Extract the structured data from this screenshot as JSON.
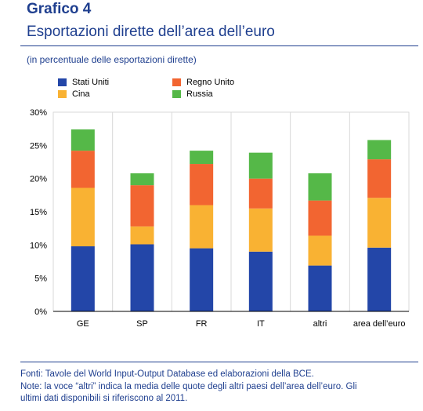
{
  "figure": {
    "label": "Grafico 4",
    "title": "Esportazioni dirette dell’area dell’euro",
    "subtitle": "(in percentuale delle esportazioni dirette)"
  },
  "colors": {
    "Stati Uniti": "#2346a8",
    "Cina": "#f9b233",
    "Regno Unito": "#f26531",
    "Russia": "#55b848",
    "text": "#1f3f8f"
  },
  "chart_data": {
    "type": "bar",
    "stacked": true,
    "categories": [
      "GE",
      "SP",
      "FR",
      "IT",
      "altri",
      "area dell’euro"
    ],
    "series": [
      {
        "name": "Stati Uniti",
        "values": [
          9.8,
          10.1,
          9.5,
          9.0,
          6.9,
          9.6
        ]
      },
      {
        "name": "Cina",
        "values": [
          8.8,
          2.7,
          6.5,
          6.5,
          4.5,
          7.5
        ]
      },
      {
        "name": "Regno Unito",
        "values": [
          5.6,
          6.2,
          6.2,
          4.5,
          5.3,
          5.8
        ]
      },
      {
        "name": "Russia",
        "values": [
          3.2,
          1.8,
          2.0,
          3.9,
          4.1,
          2.9
        ]
      }
    ],
    "legend_order": [
      "Stati Uniti",
      "Regno Unito",
      "Cina",
      "Russia"
    ],
    "legend_position": "top-left",
    "yticks": [
      "0%",
      "5%",
      "10%",
      "15%",
      "20%",
      "25%",
      "30%"
    ],
    "ylim": [
      0,
      30
    ],
    "grid": "vertical"
  },
  "footnotes": {
    "source": "Fonti: Tavole del World Input-Output Database ed elaborazioni della BCE.",
    "note_line1": "Note: la voce “altri” indica la media delle quote degli altri paesi dell’area dell’euro. Gli",
    "note_line2": "ultimi dati disponibili si riferiscono al 2011."
  }
}
